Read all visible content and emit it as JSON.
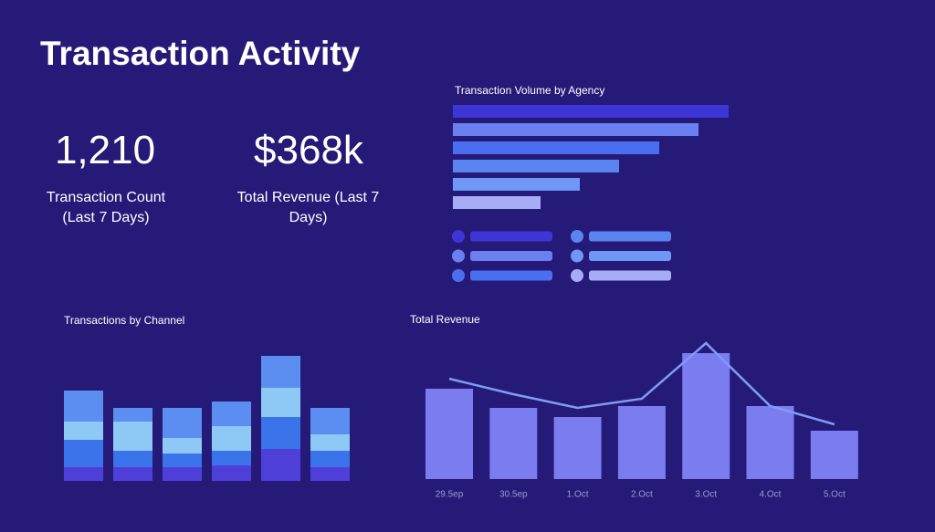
{
  "header": {
    "title": "Transaction Activity"
  },
  "kpis": [
    {
      "value": "1,210",
      "label": "Transaction Count (Last 7 Days)"
    },
    {
      "value": "$368k",
      "label": "Total Revenue (Last 7 Days)"
    }
  ],
  "chart_data": [
    {
      "type": "hbar",
      "title": "Transaction Volume by Agency",
      "values": [
        302,
        269,
        226,
        182,
        139,
        96
      ],
      "colors": [
        "#3d35d6",
        "#6a7ff0",
        "#4a6ef0",
        "#5a85f0",
        "#6f97f5",
        "#a7acf7"
      ]
    },
    {
      "type": "stacked_bar",
      "title": "Transactions by Channel",
      "series": [
        {
          "color": "#4f3fd9",
          "values": [
            15,
            15,
            15,
            17,
            35,
            15
          ]
        },
        {
          "color": "#3b73ea",
          "values": [
            30,
            18,
            15,
            16,
            35,
            18
          ]
        },
        {
          "color": "#8ec8f5",
          "values": [
            20,
            32,
            17,
            27,
            32,
            18
          ]
        },
        {
          "color": "#5b8ef0",
          "values": [
            34,
            15,
            33,
            27,
            35,
            29
          ]
        }
      ]
    },
    {
      "type": "bar_line",
      "title": "Total Revenue",
      "categories": [
        "29.5ep",
        "30.5ep",
        "1.Oct",
        "2.Oct",
        "3.Oct",
        "4.Oct",
        "5.Oct"
      ],
      "series": [
        {
          "type": "bar",
          "color": "#7a7cf0",
          "values": [
            99,
            78,
            68,
            80,
            138,
            80,
            53
          ]
        },
        {
          "type": "line",
          "color": "#7f9cf5",
          "values": [
            110,
            93,
            78,
            88,
            149,
            80,
            60
          ]
        }
      ]
    }
  ]
}
